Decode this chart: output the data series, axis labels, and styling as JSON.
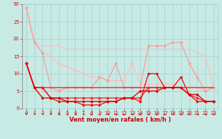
{
  "background_color": "#c8eae5",
  "grid_color": "#a0cccc",
  "xlabel": "Vent moyen/en rafales ( km/h )",
  "xlabel_color": "#cc0000",
  "tick_color": "#cc0000",
  "xlim": [
    -0.5,
    23.5
  ],
  "ylim": [
    0,
    30
  ],
  "xticks": [
    0,
    1,
    2,
    3,
    4,
    5,
    6,
    7,
    8,
    9,
    10,
    11,
    12,
    13,
    14,
    15,
    16,
    17,
    18,
    19,
    20,
    21,
    22,
    23
  ],
  "yticks": [
    0,
    5,
    10,
    15,
    20,
    25,
    30
  ],
  "series": [
    {
      "x": [
        0,
        1,
        2,
        3,
        4,
        5,
        6,
        7,
        8,
        9,
        10,
        11,
        12,
        13,
        14,
        15,
        16,
        17,
        18,
        19,
        20,
        21,
        22,
        23
      ],
      "y": [
        29,
        19,
        18,
        18,
        18,
        17,
        17,
        17,
        17,
        17,
        17,
        17,
        17,
        17,
        17,
        17,
        17,
        17,
        17,
        17,
        17,
        16,
        15,
        6
      ],
      "color": "#ffbbbb",
      "lw": 0.9,
      "marker": null
    },
    {
      "x": [
        0,
        1,
        2,
        3,
        4,
        5,
        6,
        7,
        8,
        9,
        10,
        11,
        12,
        13,
        14,
        15,
        16,
        17,
        18,
        19,
        20,
        21,
        22,
        23
      ],
      "y": [
        29,
        19,
        16,
        15,
        13,
        12,
        11,
        10,
        9,
        9,
        8,
        8,
        8,
        13,
        7,
        7,
        7,
        7,
        7,
        6,
        6,
        6,
        5,
        6
      ],
      "color": "#ffbbbb",
      "lw": 0.9,
      "marker": "D",
      "ms": 1.5
    },
    {
      "x": [
        0,
        1,
        2,
        3,
        4,
        5,
        6,
        7,
        8,
        9,
        10,
        11,
        12,
        13,
        14,
        15,
        16,
        17,
        18,
        19,
        20,
        21,
        22,
        23
      ],
      "y": [
        29,
        19,
        16,
        6,
        5,
        6,
        6,
        6,
        6,
        9,
        8,
        13,
        6,
        6,
        6,
        18,
        18,
        18,
        19,
        19,
        13,
        9,
        5,
        6
      ],
      "color": "#ff9999",
      "lw": 0.9,
      "marker": "D",
      "ms": 1.5
    },
    {
      "x": [
        0,
        1,
        2,
        3,
        4,
        5,
        6,
        7,
        8,
        9,
        10,
        11,
        12,
        13,
        14,
        15,
        16,
        17,
        18,
        19,
        20,
        21,
        22,
        23
      ],
      "y": [
        13,
        6,
        6,
        3,
        3,
        3,
        3,
        3,
        3,
        3,
        3,
        3,
        3,
        3,
        3,
        6,
        6,
        6,
        6,
        6,
        4,
        3,
        2,
        2
      ],
      "color": "#ff2020",
      "lw": 1.0,
      "marker": "D",
      "ms": 1.5
    },
    {
      "x": [
        0,
        1,
        2,
        3,
        4,
        5,
        6,
        7,
        8,
        9,
        10,
        11,
        12,
        13,
        14,
        15,
        16,
        17,
        18,
        19,
        20,
        21,
        22,
        23
      ],
      "y": [
        13,
        6,
        6,
        3,
        2,
        2,
        2,
        1,
        1,
        1,
        2,
        2,
        3,
        3,
        2,
        10,
        10,
        6,
        6,
        9,
        4,
        2,
        2,
        2
      ],
      "color": "#ee1111",
      "lw": 1.0,
      "marker": "D",
      "ms": 1.5
    },
    {
      "x": [
        0,
        1,
        2,
        3,
        4,
        5,
        6,
        7,
        8,
        9,
        10,
        11,
        12,
        13,
        14,
        15,
        16,
        17,
        18,
        19,
        20,
        21,
        22,
        23
      ],
      "y": [
        13,
        6,
        6,
        6,
        6,
        6,
        6,
        6,
        6,
        6,
        6,
        6,
        6,
        6,
        6,
        6,
        6,
        6,
        6,
        6,
        6,
        6,
        6,
        6
      ],
      "color": "#ff2020",
      "lw": 1.0,
      "marker": null
    },
    {
      "x": [
        0,
        1,
        2,
        3,
        4,
        5,
        6,
        7,
        8,
        9,
        10,
        11,
        12,
        13,
        14,
        15,
        16,
        17,
        18,
        19,
        20,
        21,
        22,
        23
      ],
      "y": [
        13,
        6,
        3,
        3,
        3,
        2,
        2,
        2,
        2,
        2,
        2,
        2,
        3,
        3,
        5,
        5,
        5,
        6,
        6,
        6,
        4,
        4,
        2,
        2
      ],
      "color": "#dd0000",
      "lw": 1.0,
      "marker": "D",
      "ms": 1.5
    }
  ],
  "arrows": {
    "y_data": -1.8,
    "color": "#cc0000",
    "directions": [
      0,
      0,
      0,
      0,
      315,
      315,
      315,
      315,
      270,
      270,
      315,
      315,
      270,
      315,
      270,
      315,
      315,
      270,
      315,
      315,
      315,
      315,
      315,
      315
    ]
  },
  "tick_fontsize": 5,
  "label_fontsize": 6
}
